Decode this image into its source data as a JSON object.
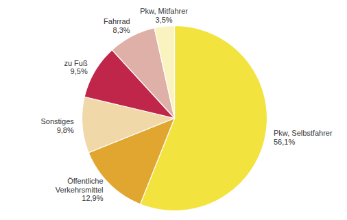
{
  "chart_data": {
    "type": "pie",
    "categories": [
      "Pkw, Selbstfahrer",
      "Öffentliche Verkehrsmittel",
      "Sonstiges",
      "zu Fuß",
      "Fahrrad",
      "Pkw, Mitfahrer"
    ],
    "values": [
      56.1,
      12.9,
      9.8,
      9.5,
      8.3,
      3.5
    ],
    "value_labels": [
      "56,1%",
      "12,9%",
      "9,8%",
      "9,5%",
      "8,3%",
      "3,5%"
    ],
    "colors": [
      "#f2e33f",
      "#e0a630",
      "#f0d8a8",
      "#c0264a",
      "#deb0a8",
      "#faf3c0"
    ],
    "data_labels": true
  }
}
